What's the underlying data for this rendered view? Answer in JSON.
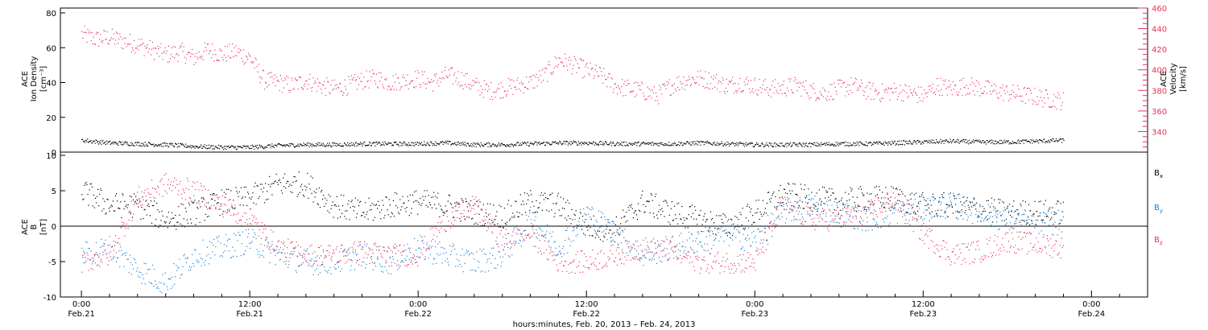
{
  "chart_data": [
    {
      "type": "scatter",
      "panel": "top",
      "ylabel_left": [
        "ACE",
        "Ion Density",
        "[cm⁻³]"
      ],
      "ylabel_right": [
        "ACE",
        "Velocity",
        "[km/s]"
      ],
      "ylim_left": [
        0,
        80
      ],
      "yticks_left": [
        0,
        20,
        40,
        60,
        80
      ],
      "ylim_right": [
        320,
        460
      ],
      "yticks_right": [
        340,
        360,
        380,
        400,
        420,
        440,
        460
      ],
      "series": [
        {
          "axis": "left",
          "color": "#000000",
          "x_hours": [
            0,
            2,
            4,
            6,
            8,
            10,
            12,
            14,
            16,
            18,
            20,
            22,
            24,
            26,
            28,
            30,
            32,
            34,
            36,
            38,
            40,
            42,
            44,
            46,
            48,
            50,
            52,
            54,
            56,
            58,
            60,
            62,
            64,
            66,
            68,
            70
          ],
          "values": [
            7,
            5.5,
            5,
            4.5,
            3.5,
            3,
            3,
            4,
            4.5,
            4.5,
            5,
            5,
            5,
            5.5,
            4.5,
            4.5,
            5,
            5.5,
            5.5,
            5,
            5,
            5,
            5.5,
            5,
            4.5,
            4.5,
            4.5,
            5,
            5,
            5.5,
            6,
            6.5,
            6,
            6,
            6.5,
            7
          ]
        },
        {
          "axis": "right",
          "color": "#e8325a",
          "x_hours": [
            0,
            1,
            2,
            3,
            4,
            5,
            6,
            7,
            8,
            9,
            10,
            11,
            12,
            13,
            14,
            15,
            16,
            17,
            18,
            19,
            20,
            21,
            22,
            23,
            24,
            25,
            26,
            27,
            28,
            29,
            30,
            31,
            32,
            33,
            34,
            35,
            36,
            37,
            38,
            39,
            40,
            41,
            42,
            43,
            44,
            45,
            46,
            47,
            48,
            49,
            50,
            51,
            52,
            53,
            54,
            55,
            56,
            57,
            58,
            59,
            60,
            61,
            62,
            63,
            64,
            65,
            66,
            67,
            68,
            69,
            70
          ],
          "values": [
            435,
            430,
            432,
            428,
            425,
            420,
            415,
            418,
            412,
            420,
            415,
            418,
            412,
            390,
            388,
            385,
            390,
            385,
            382,
            385,
            390,
            392,
            388,
            390,
            392,
            388,
            395,
            392,
            385,
            380,
            382,
            385,
            388,
            395,
            410,
            405,
            400,
            395,
            385,
            382,
            380,
            375,
            385,
            390,
            392,
            390,
            385,
            388,
            385,
            382,
            383,
            385,
            380,
            378,
            382,
            385,
            380,
            378,
            380,
            378,
            375,
            385,
            382,
            385,
            383,
            380,
            378,
            376,
            374,
            372,
            370
          ]
        }
      ]
    },
    {
      "type": "scatter",
      "panel": "bottom",
      "ylabel_left": [
        "ACE",
        "B",
        "[nT]"
      ],
      "ylim": [
        -10,
        10
      ],
      "yticks": [
        -10,
        -5,
        0,
        5,
        10
      ],
      "legend": [
        "Bx",
        "By",
        "Bz"
      ],
      "series": [
        {
          "name": "Bx",
          "color": "#000000",
          "x_hours": [
            0,
            2,
            4,
            6,
            8,
            10,
            12,
            14,
            16,
            18,
            20,
            22,
            24,
            26,
            28,
            30,
            32,
            34,
            36,
            38,
            40,
            42,
            44,
            46,
            48,
            50,
            52,
            54,
            56,
            58,
            60,
            62,
            64,
            66,
            68,
            70
          ],
          "values": [
            5,
            3,
            3,
            1,
            2,
            3.5,
            4,
            6,
            6,
            3,
            2,
            3,
            3.5,
            3,
            2,
            1.5,
            3.5,
            3,
            0,
            -0.5,
            3.5,
            2,
            1,
            0,
            2,
            4.5,
            4,
            3.5,
            4,
            4,
            3,
            3,
            2.5,
            2,
            2,
            2
          ]
        },
        {
          "name": "By",
          "color": "#1a7fd6",
          "x_hours": [
            0,
            2,
            4,
            6,
            8,
            10,
            12,
            14,
            16,
            18,
            20,
            22,
            24,
            26,
            28,
            30,
            32,
            34,
            36,
            38,
            40,
            42,
            44,
            46,
            48,
            50,
            52,
            54,
            56,
            58,
            60,
            62,
            64,
            66,
            68,
            70
          ],
          "values": [
            -4,
            -3,
            -6,
            -8,
            -4,
            -3,
            -2,
            -4,
            -5,
            -5,
            -4,
            -5,
            -3,
            -4,
            -5,
            -4,
            1,
            -3,
            2,
            -1,
            -4,
            -3,
            -2,
            -1,
            -2,
            2,
            3,
            2,
            1,
            2,
            2.5,
            3,
            2,
            1,
            0.5,
            0.5
          ]
        },
        {
          "name": "Bz",
          "color": "#e8325a",
          "x_hours": [
            0,
            2,
            4,
            6,
            8,
            10,
            12,
            14,
            16,
            18,
            20,
            22,
            24,
            26,
            28,
            30,
            32,
            34,
            36,
            38,
            40,
            42,
            44,
            46,
            48,
            50,
            52,
            54,
            56,
            58,
            60,
            62,
            64,
            66,
            68,
            70
          ],
          "values": [
            -5,
            -4,
            4,
            6,
            5,
            3,
            1,
            -3,
            -4,
            -4,
            -3.5,
            -4,
            -4,
            1,
            3,
            -2,
            -1,
            -5,
            -5,
            -4,
            -3,
            -3.5,
            -5,
            -5,
            -5,
            3,
            1,
            1,
            2,
            4,
            -1,
            -4,
            -3.5,
            -2,
            -2.5,
            -3
          ]
        }
      ]
    }
  ],
  "x_axis": {
    "label": "hours:minutes, Feb. 20, 2013 – Feb. 24, 2013",
    "range_hours": [
      -1.5,
      76
    ],
    "ticks": [
      {
        "h": 0,
        "time": "0:00",
        "date": "Feb.21"
      },
      {
        "h": 12,
        "time": "12:00",
        "date": "Feb.21"
      },
      {
        "h": 24,
        "time": "0:00",
        "date": "Feb.22"
      },
      {
        "h": 36,
        "time": "12:00",
        "date": "Feb.22"
      },
      {
        "h": 48,
        "time": "0:00",
        "date": "Feb.23"
      },
      {
        "h": 60,
        "time": "12:00",
        "date": "Feb.23"
      },
      {
        "h": 72,
        "time": "0:00",
        "date": "Feb.24"
      }
    ]
  },
  "legend_labels": {
    "bx": "B",
    "bx_sub": "x",
    "by": "B",
    "by_sub": "y",
    "bz": "B",
    "bz_sub": "z"
  }
}
